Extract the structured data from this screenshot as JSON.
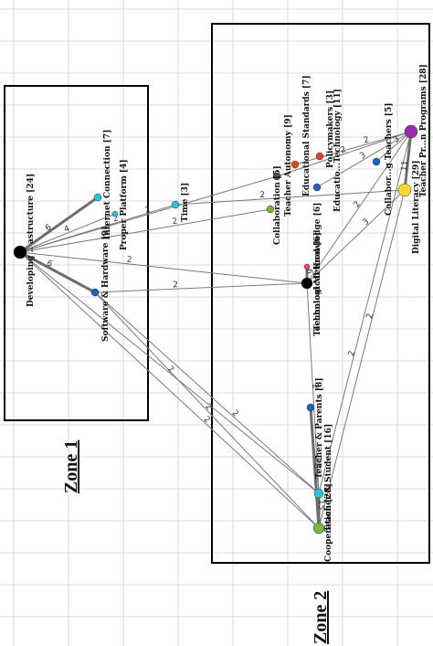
{
  "zones": [
    {
      "id": "z1",
      "title": "Zone 1"
    },
    {
      "id": "z2",
      "title": "Zone 2"
    }
  ],
  "nodes": [
    {
      "id": "dev",
      "label": "Developing .. astructure [24]",
      "color": "#000000"
    },
    {
      "id": "inet",
      "label": "Internet Connection [7]",
      "color": "#26c6da"
    },
    {
      "id": "proper",
      "label": "Proper Platform [4]",
      "color": "#26c6da"
    },
    {
      "id": "time",
      "label": "Time [3]",
      "color": "#26c6da"
    },
    {
      "id": "sw",
      "label": "Software & Hardware [9]",
      "color": "#1565c0"
    },
    {
      "id": "collab",
      "label": "Collaboration [5]",
      "color": "#7cb342"
    },
    {
      "id": "autonomy",
      "label": "Teacher Autonomy [9]",
      "color": "#6d4c41"
    },
    {
      "id": "edstd",
      "label": "Educational Standards [7]",
      "color": "#e64a19"
    },
    {
      "id": "policy",
      "label": "Policymakers [3]",
      "color": "#e53935"
    },
    {
      "id": "edtech",
      "label": "Educatio...Technology [11]",
      "color": "#1565c0"
    },
    {
      "id": "collabteach",
      "label": "Collabor...g Teachers [5]",
      "color": "#1565c0"
    },
    {
      "id": "tpp",
      "label": "Teacher Pr...n Programs [28]",
      "color": "#9c27b0"
    },
    {
      "id": "diglit",
      "label": "Digital Literacy [29]",
      "color": "#fdd835"
    },
    {
      "id": "knowledge",
      "label": "Technological Knowledge [6]",
      "color": "#ec407a"
    },
    {
      "id": "method",
      "label": "Technical Method [6]",
      "color": "#000000"
    },
    {
      "id": "parents",
      "label": "Teacher & Parents [8]",
      "color": "#1565c0"
    },
    {
      "id": "student",
      "label": "Teacher & Student [16]",
      "color": "#26c6da"
    },
    {
      "id": "coop",
      "label": "Cooperation [28]",
      "color": "#7cb342"
    }
  ],
  "edges": [
    {
      "from": "dev",
      "to": "inet",
      "weight": "6"
    },
    {
      "from": "dev",
      "to": "proper",
      "weight": "4"
    },
    {
      "from": "dev",
      "to": "time",
      "weight": "2"
    },
    {
      "from": "dev",
      "to": "sw",
      "weight": "6"
    },
    {
      "from": "dev",
      "to": "autonomy",
      "weight": "2"
    },
    {
      "from": "dev",
      "to": "collab",
      "weight": "2"
    },
    {
      "from": "dev",
      "to": "method",
      "weight": "2"
    },
    {
      "from": "dev",
      "to": "student",
      "weight": "2"
    },
    {
      "from": "dev",
      "to": "coop",
      "weight": "2"
    },
    {
      "from": "sw",
      "to": "method",
      "weight": "2"
    },
    {
      "from": "sw",
      "to": "coop",
      "weight": "2"
    },
    {
      "from": "sw",
      "to": "student",
      "weight": "2"
    },
    {
      "from": "time",
      "to": "diglit",
      "weight": "2"
    },
    {
      "from": "edtech",
      "to": "tpp",
      "weight": "3"
    },
    {
      "from": "collabteach",
      "to": "tpp",
      "weight": "3"
    },
    {
      "from": "diglit",
      "to": "tpp",
      "weight": "11"
    },
    {
      "from": "method",
      "to": "tpp",
      "weight": "2"
    },
    {
      "from": "method",
      "to": "diglit",
      "weight": "3"
    },
    {
      "from": "knowledge",
      "to": "method",
      "weight": "6"
    },
    {
      "from": "method",
      "to": "student",
      "weight": "2"
    },
    {
      "from": "parents",
      "to": "student",
      "weight": "3"
    },
    {
      "from": "student",
      "to": "coop",
      "weight": "15"
    },
    {
      "from": "parents",
      "to": "coop",
      "weight": "8"
    },
    {
      "from": "coop",
      "to": "diglit",
      "weight": "2"
    },
    {
      "from": "student",
      "to": "tpp",
      "weight": "2"
    },
    {
      "from": "autonomy",
      "to": "tpp",
      "weight": "2"
    },
    {
      "from": "edstd",
      "to": "tpp",
      "weight": "2"
    }
  ]
}
